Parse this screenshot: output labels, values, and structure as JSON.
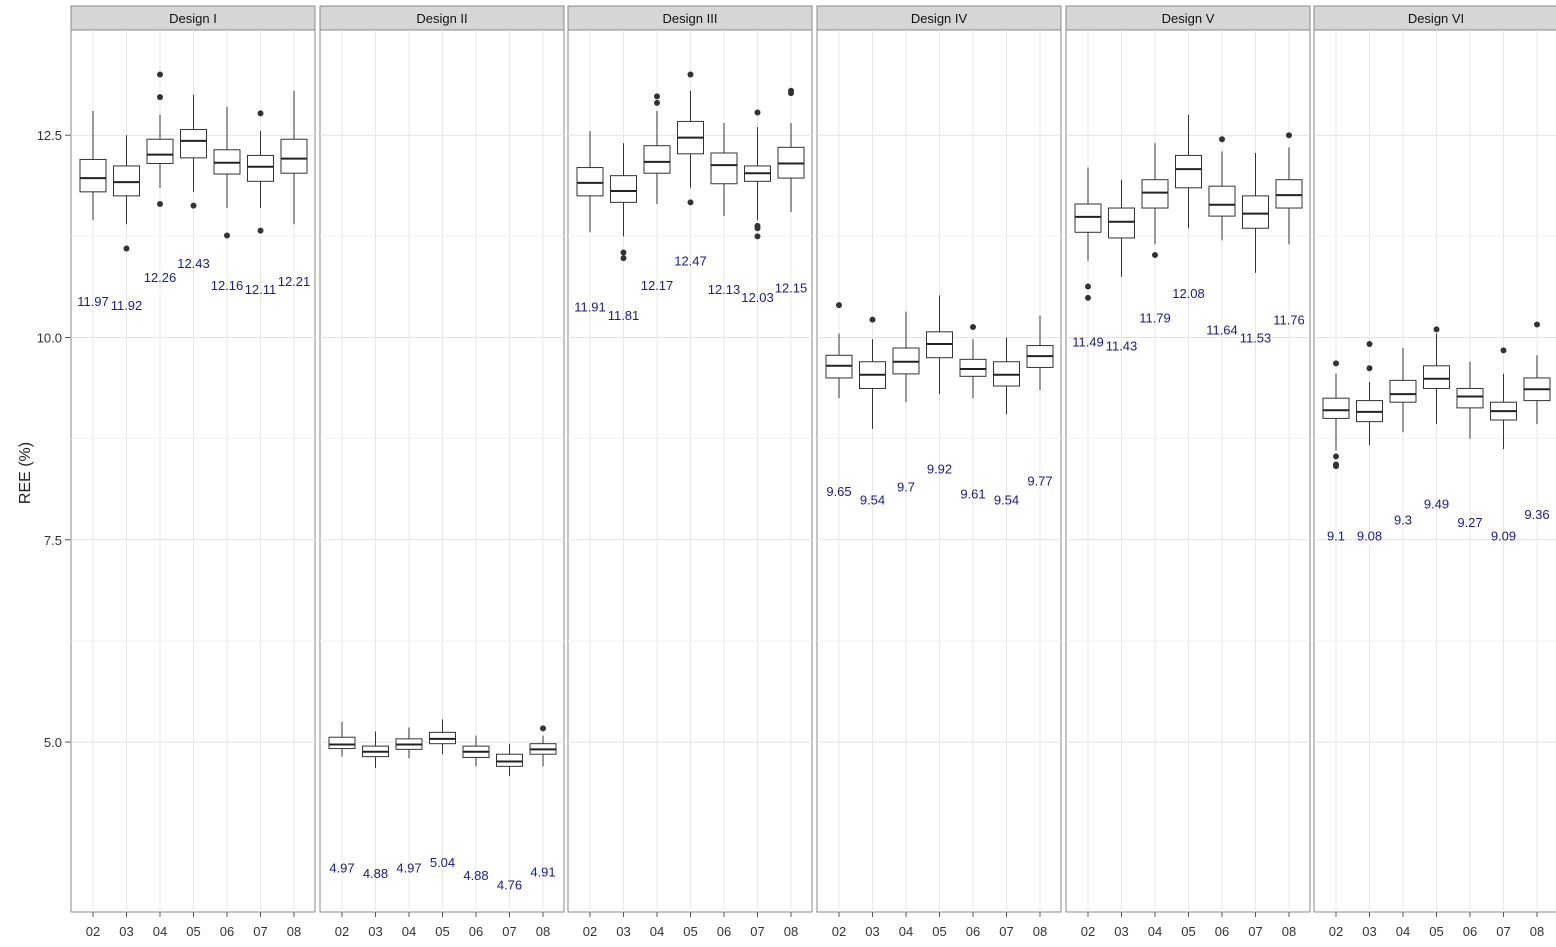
{
  "chart_data": {
    "type": "boxplot",
    "ylabel": "REE (%)",
    "y_ticks": [
      5.0,
      7.5,
      10.0,
      12.5
    ],
    "y_tick_labels": [
      "5.0",
      "7.5",
      "10.0",
      "12.5"
    ],
    "ylim": [
      2.9,
      13.8
    ],
    "grid": true,
    "facet_strip_color": "#d6d6d6",
    "label_color": "#1a1a8c",
    "categories": [
      "02",
      "03",
      "04",
      "05",
      "06",
      "07",
      "08"
    ],
    "facets": [
      {
        "title": "Design I",
        "boxes": [
          {
            "cat": "02",
            "median": 11.97,
            "q1": 11.8,
            "q3": 12.2,
            "wlo": 11.45,
            "whi": 12.8,
            "outliers": [],
            "label": "11.97",
            "label_y": 10.45
          },
          {
            "cat": "03",
            "median": 11.92,
            "q1": 11.75,
            "q3": 12.12,
            "wlo": 11.4,
            "whi": 12.5,
            "outliers": [
              11.1
            ],
            "label": "11.92",
            "label_y": 10.4
          },
          {
            "cat": "04",
            "median": 12.26,
            "q1": 12.15,
            "q3": 12.45,
            "wlo": 11.85,
            "whi": 12.75,
            "outliers": [
              13.25,
              12.97,
              11.65
            ],
            "label": "12.26",
            "label_y": 10.75
          },
          {
            "cat": "05",
            "median": 12.43,
            "q1": 12.22,
            "q3": 12.57,
            "wlo": 11.8,
            "whi": 13.0,
            "outliers": [
              11.63
            ],
            "label": "12.43",
            "label_y": 10.92
          },
          {
            "cat": "06",
            "median": 12.16,
            "q1": 12.02,
            "q3": 12.32,
            "wlo": 11.6,
            "whi": 12.85,
            "outliers": [
              11.26
            ],
            "label": "12.16",
            "label_y": 10.65
          },
          {
            "cat": "07",
            "median": 12.11,
            "q1": 11.93,
            "q3": 12.25,
            "wlo": 11.6,
            "whi": 12.55,
            "outliers": [
              12.77,
              11.32
            ],
            "label": "12.11",
            "label_y": 10.6
          },
          {
            "cat": "08",
            "median": 12.21,
            "q1": 12.03,
            "q3": 12.45,
            "wlo": 11.4,
            "whi": 13.05,
            "outliers": [],
            "label": "12.21",
            "label_y": 10.7
          }
        ]
      },
      {
        "title": "Design II",
        "boxes": [
          {
            "cat": "02",
            "median": 4.97,
            "q1": 4.92,
            "q3": 5.06,
            "wlo": 4.82,
            "whi": 5.25,
            "outliers": [],
            "label": "4.97",
            "label_y": 3.45
          },
          {
            "cat": "03",
            "median": 4.88,
            "q1": 4.82,
            "q3": 4.95,
            "wlo": 4.68,
            "whi": 5.13,
            "outliers": [],
            "label": "4.88",
            "label_y": 3.38
          },
          {
            "cat": "04",
            "median": 4.97,
            "q1": 4.91,
            "q3": 5.04,
            "wlo": 4.8,
            "whi": 5.18,
            "outliers": [],
            "label": "4.97",
            "label_y": 3.45
          },
          {
            "cat": "05",
            "median": 5.04,
            "q1": 4.98,
            "q3": 5.12,
            "wlo": 4.85,
            "whi": 5.28,
            "outliers": [],
            "label": "5.04",
            "label_y": 3.52
          },
          {
            "cat": "06",
            "median": 4.88,
            "q1": 4.81,
            "q3": 4.95,
            "wlo": 4.7,
            "whi": 5.08,
            "outliers": [],
            "label": "4.88",
            "label_y": 3.36
          },
          {
            "cat": "07",
            "median": 4.76,
            "q1": 4.7,
            "q3": 4.85,
            "wlo": 4.58,
            "whi": 4.98,
            "outliers": [],
            "label": "4.76",
            "label_y": 3.24
          },
          {
            "cat": "08",
            "median": 4.91,
            "q1": 4.85,
            "q3": 4.98,
            "wlo": 4.7,
            "whi": 5.08,
            "outliers": [
              5.17
            ],
            "label": "4.91",
            "label_y": 3.4
          }
        ]
      },
      {
        "title": "Design III",
        "boxes": [
          {
            "cat": "02",
            "median": 11.91,
            "q1": 11.75,
            "q3": 12.1,
            "wlo": 11.3,
            "whi": 12.55,
            "outliers": [],
            "label": "11.91",
            "label_y": 10.38
          },
          {
            "cat": "03",
            "median": 11.81,
            "q1": 11.67,
            "q3": 12.0,
            "wlo": 11.25,
            "whi": 12.4,
            "outliers": [
              11.05,
              10.98
            ],
            "label": "11.81",
            "label_y": 10.28
          },
          {
            "cat": "04",
            "median": 12.17,
            "q1": 12.03,
            "q3": 12.37,
            "wlo": 11.65,
            "whi": 12.8,
            "outliers": [
              12.98,
              12.9
            ],
            "label": "12.17",
            "label_y": 10.65
          },
          {
            "cat": "05",
            "median": 12.47,
            "q1": 12.27,
            "q3": 12.67,
            "wlo": 11.85,
            "whi": 13.05,
            "outliers": [
              13.25,
              11.67
            ],
            "label": "12.47",
            "label_y": 10.95
          },
          {
            "cat": "06",
            "median": 12.13,
            "q1": 11.9,
            "q3": 12.28,
            "wlo": 11.5,
            "whi": 12.65,
            "outliers": [],
            "label": "12.13",
            "label_y": 10.6
          },
          {
            "cat": "07",
            "median": 12.03,
            "q1": 11.93,
            "q3": 12.12,
            "wlo": 11.45,
            "whi": 12.6,
            "outliers": [
              12.78,
              11.38,
              11.35,
              11.25
            ],
            "label": "12.03",
            "label_y": 10.5
          },
          {
            "cat": "08",
            "median": 12.15,
            "q1": 11.97,
            "q3": 12.35,
            "wlo": 11.55,
            "whi": 12.65,
            "outliers": [
              13.05,
              13.02
            ],
            "label": "12.15",
            "label_y": 10.62
          }
        ]
      },
      {
        "title": "Design IV",
        "boxes": [
          {
            "cat": "02",
            "median": 9.65,
            "q1": 9.5,
            "q3": 9.78,
            "wlo": 9.25,
            "whi": 10.05,
            "outliers": [
              10.4
            ],
            "label": "9.65",
            "label_y": 8.1
          },
          {
            "cat": "03",
            "median": 9.54,
            "q1": 9.37,
            "q3": 9.7,
            "wlo": 8.87,
            "whi": 9.98,
            "outliers": [
              10.22
            ],
            "label": "9.54",
            "label_y": 8.0
          },
          {
            "cat": "04",
            "median": 9.7,
            "q1": 9.55,
            "q3": 9.87,
            "wlo": 9.2,
            "whi": 10.32,
            "outliers": [],
            "label": "9.7",
            "label_y": 8.16
          },
          {
            "cat": "05",
            "median": 9.92,
            "q1": 9.75,
            "q3": 10.07,
            "wlo": 9.3,
            "whi": 10.52,
            "outliers": [],
            "label": "9.92",
            "label_y": 8.38
          },
          {
            "cat": "06",
            "median": 9.61,
            "q1": 9.52,
            "q3": 9.73,
            "wlo": 9.25,
            "whi": 9.98,
            "outliers": [
              10.13
            ],
            "label": "9.61",
            "label_y": 8.07
          },
          {
            "cat": "07",
            "median": 9.54,
            "q1": 9.4,
            "q3": 9.7,
            "wlo": 9.05,
            "whi": 10.0,
            "outliers": [],
            "label": "9.54",
            "label_y": 8.0
          },
          {
            "cat": "08",
            "median": 9.77,
            "q1": 9.63,
            "q3": 9.9,
            "wlo": 9.35,
            "whi": 10.27,
            "outliers": [],
            "label": "9.77",
            "label_y": 8.23
          }
        ]
      },
      {
        "title": "Design V",
        "boxes": [
          {
            "cat": "02",
            "median": 11.49,
            "q1": 11.3,
            "q3": 11.65,
            "wlo": 10.95,
            "whi": 12.1,
            "outliers": [
              10.63,
              10.49
            ],
            "label": "11.49",
            "label_y": 9.95
          },
          {
            "cat": "03",
            "median": 11.43,
            "q1": 11.23,
            "q3": 11.6,
            "wlo": 10.75,
            "whi": 11.95,
            "outliers": [],
            "label": "11.43",
            "label_y": 9.9
          },
          {
            "cat": "04",
            "median": 11.79,
            "q1": 11.6,
            "q3": 11.95,
            "wlo": 11.15,
            "whi": 12.4,
            "outliers": [
              11.02
            ],
            "label": "11.79",
            "label_y": 10.25
          },
          {
            "cat": "05",
            "median": 12.08,
            "q1": 11.85,
            "q3": 12.25,
            "wlo": 11.35,
            "whi": 12.75,
            "outliers": [],
            "label": "12.08",
            "label_y": 10.55
          },
          {
            "cat": "06",
            "median": 11.64,
            "q1": 11.5,
            "q3": 11.87,
            "wlo": 11.2,
            "whi": 12.3,
            "outliers": [
              12.45
            ],
            "label": "11.64",
            "label_y": 10.1
          },
          {
            "cat": "07",
            "median": 11.53,
            "q1": 11.35,
            "q3": 11.75,
            "wlo": 10.8,
            "whi": 12.28,
            "outliers": [],
            "label": "11.53",
            "label_y": 10.0
          },
          {
            "cat": "08",
            "median": 11.76,
            "q1": 11.6,
            "q3": 11.95,
            "wlo": 11.15,
            "whi": 12.35,
            "outliers": [
              12.5
            ],
            "label": "11.76",
            "label_y": 10.22
          }
        ]
      },
      {
        "title": "Design VI",
        "boxes": [
          {
            "cat": "02",
            "median": 9.1,
            "q1": 9.0,
            "q3": 9.25,
            "wlo": 8.6,
            "whi": 9.55,
            "outliers": [
              9.68,
              8.53,
              8.43,
              8.41
            ],
            "label": "9.1",
            "label_y": 7.55
          },
          {
            "cat": "03",
            "median": 9.08,
            "q1": 8.96,
            "q3": 9.22,
            "wlo": 8.67,
            "whi": 9.45,
            "outliers": [
              9.92,
              9.62
            ],
            "label": "9.08",
            "label_y": 7.55
          },
          {
            "cat": "04",
            "median": 9.3,
            "q1": 9.2,
            "q3": 9.47,
            "wlo": 8.83,
            "whi": 9.87,
            "outliers": [],
            "label": "9.3",
            "label_y": 7.75
          },
          {
            "cat": "05",
            "median": 9.49,
            "q1": 9.37,
            "q3": 9.65,
            "wlo": 8.93,
            "whi": 10.05,
            "outliers": [
              10.1
            ],
            "label": "9.49",
            "label_y": 7.95
          },
          {
            "cat": "06",
            "median": 9.27,
            "q1": 9.13,
            "q3": 9.37,
            "wlo": 8.75,
            "whi": 9.7,
            "outliers": [],
            "label": "9.27",
            "label_y": 7.72
          },
          {
            "cat": "07",
            "median": 9.09,
            "q1": 8.98,
            "q3": 9.2,
            "wlo": 8.62,
            "whi": 9.55,
            "outliers": [
              9.84
            ],
            "label": "9.09",
            "label_y": 7.55
          },
          {
            "cat": "08",
            "median": 9.36,
            "q1": 9.22,
            "q3": 9.5,
            "wlo": 8.93,
            "whi": 9.78,
            "outliers": [
              10.16
            ],
            "label": "9.36",
            "label_y": 7.82
          }
        ]
      }
    ]
  }
}
